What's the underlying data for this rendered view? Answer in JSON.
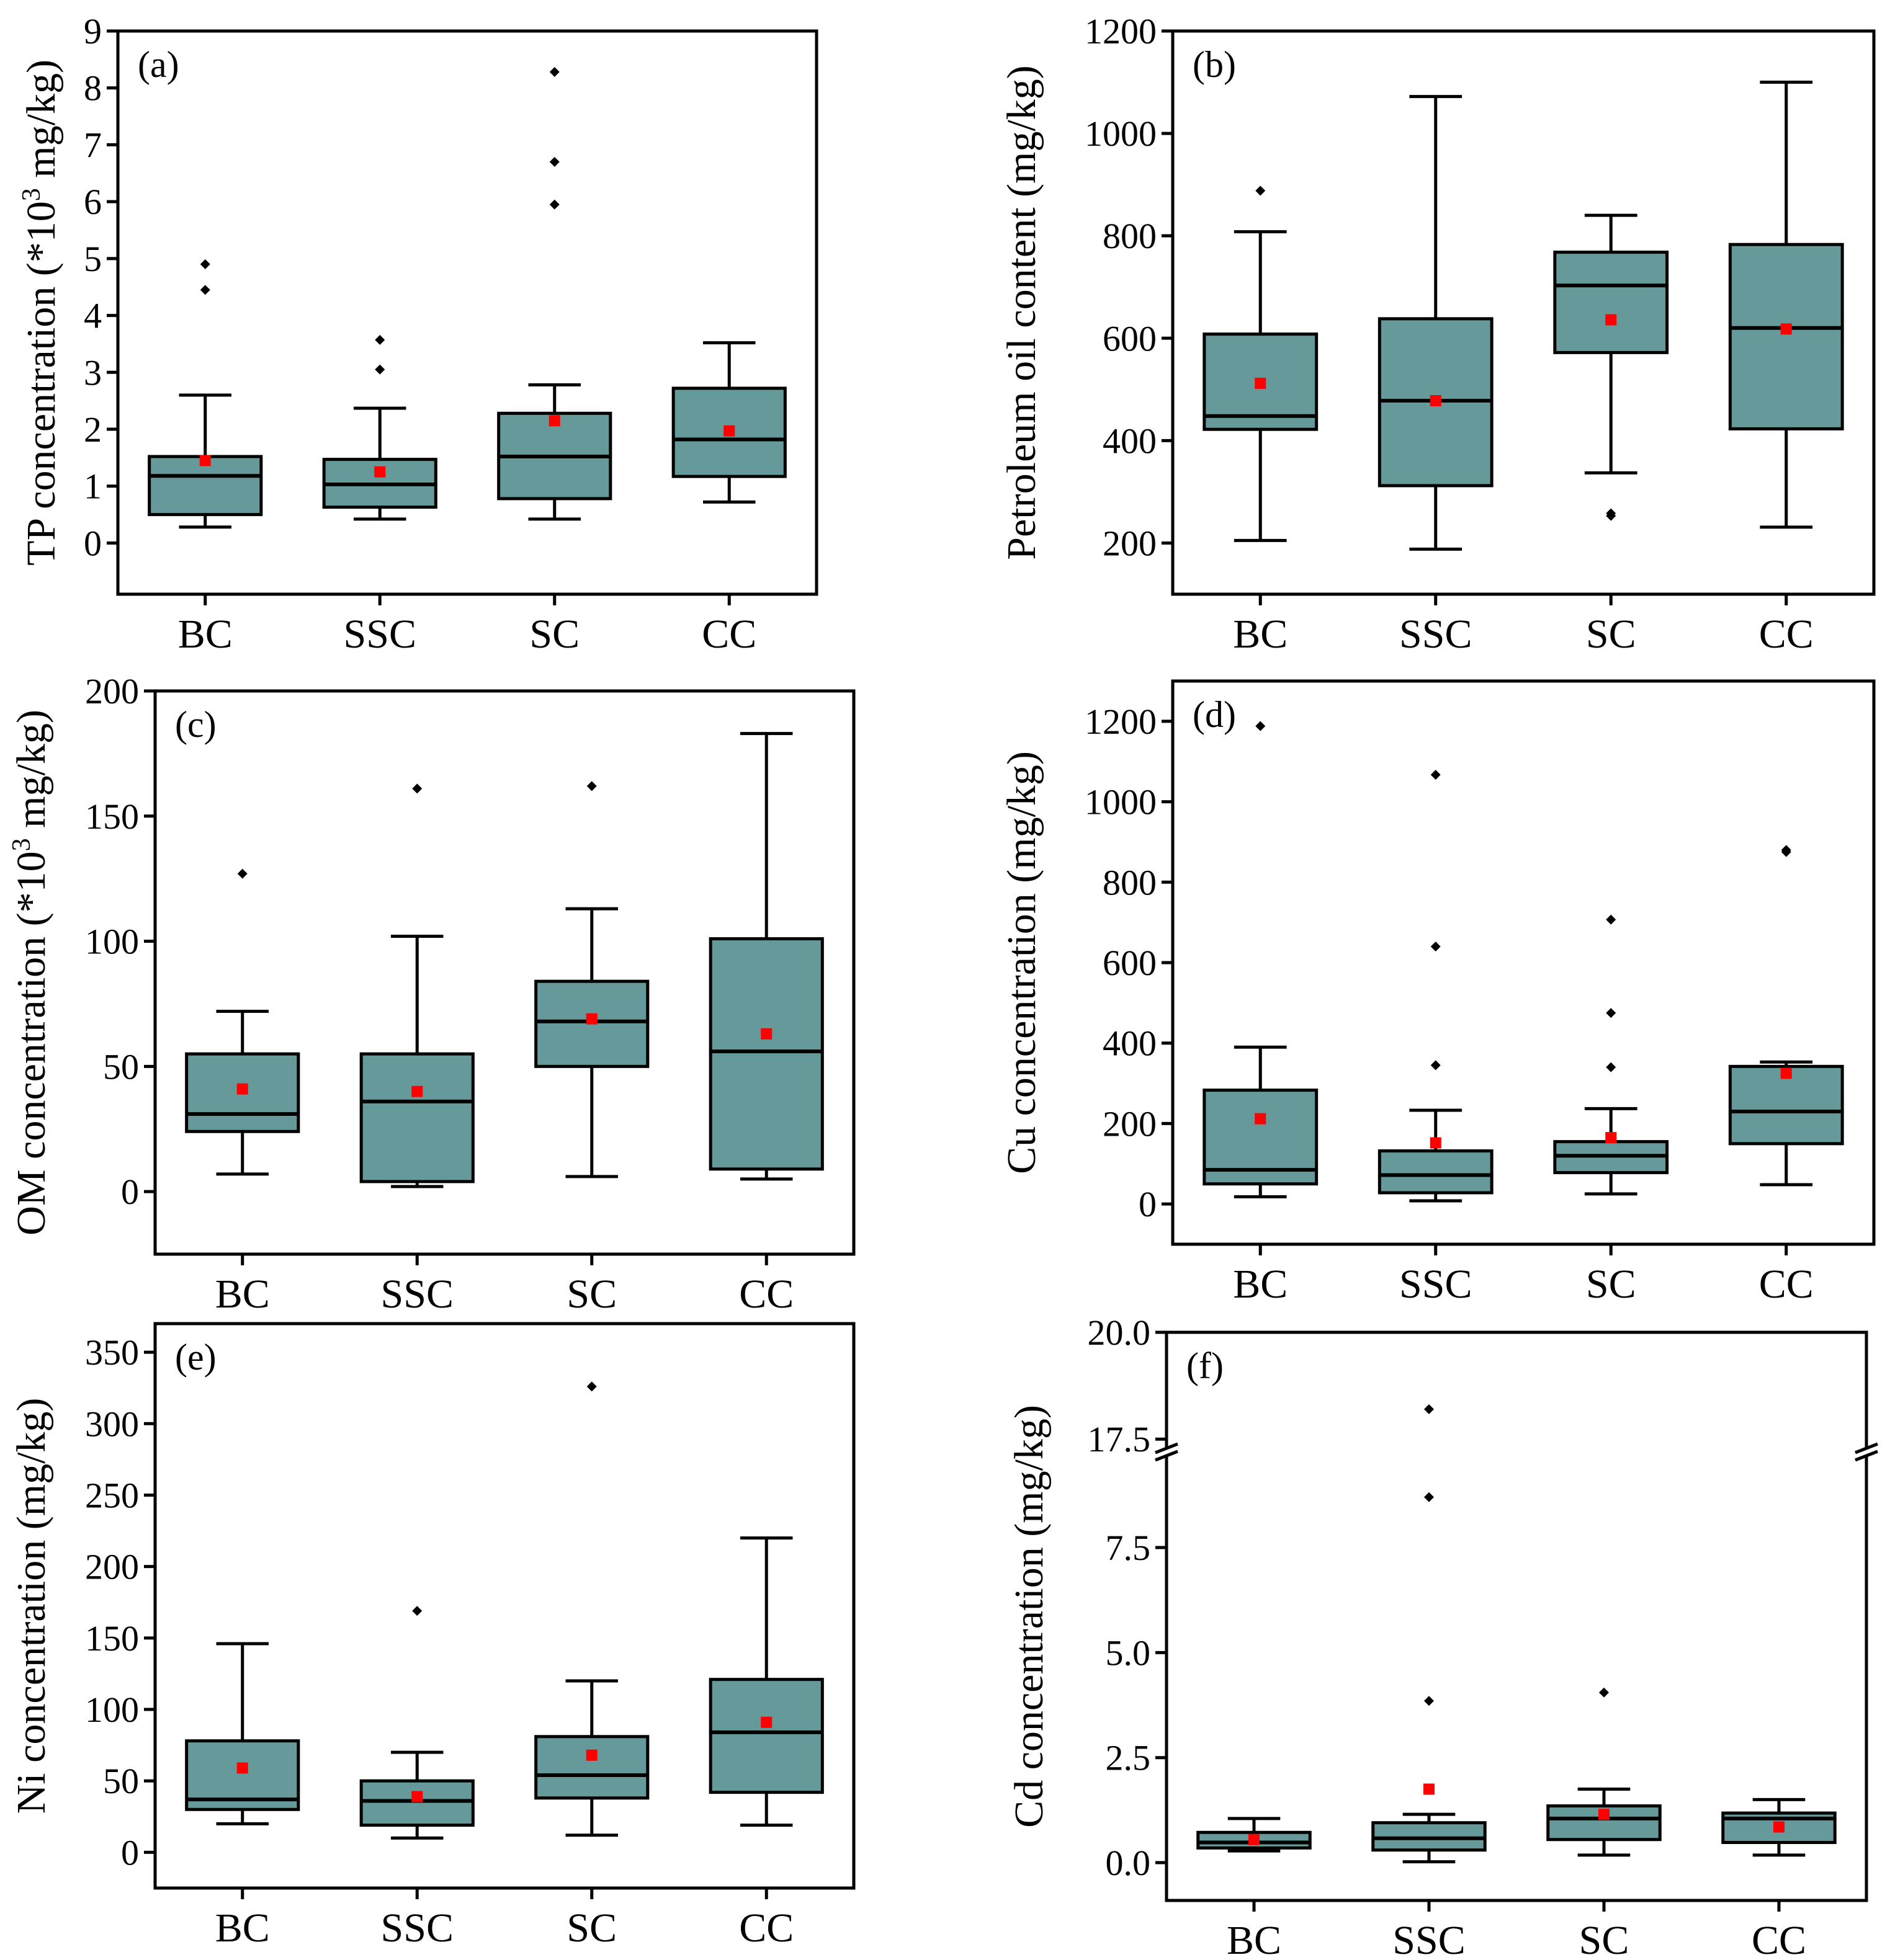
{
  "figure": {
    "colors": {
      "box_fill": "#66999a",
      "mean_marker": "#ff0000",
      "ink": "#000000",
      "background": "#ffffff"
    }
  },
  "chart_data": [
    {
      "type": "box",
      "id": "a",
      "panel_label": "(a)",
      "ylabel": "TP concentration (*10",
      "ylabel_superscript": "3",
      "ylabel_suffix": " mg/kg)",
      "ylim": [
        -0.9,
        9
      ],
      "yticks": [
        0,
        1,
        2,
        3,
        4,
        5,
        6,
        7,
        8,
        9
      ],
      "ytick_labels": [
        "0",
        "1",
        "2",
        "3",
        "4",
        "5",
        "6",
        "7",
        "8",
        "9"
      ],
      "categories": [
        "BC",
        "SSC",
        "SC",
        "CC"
      ],
      "boxes": [
        {
          "whisker_low": 0.28,
          "q1": 0.5,
          "median": 1.18,
          "q3": 1.52,
          "whisker_high": 2.6,
          "mean": 1.45,
          "outliers": [
            4.45,
            4.9
          ]
        },
        {
          "whisker_low": 0.42,
          "q1": 0.63,
          "median": 1.03,
          "q3": 1.47,
          "whisker_high": 2.37,
          "mean": 1.25,
          "outliers": [
            3.05,
            3.57
          ]
        },
        {
          "whisker_low": 0.42,
          "q1": 0.78,
          "median": 1.52,
          "q3": 2.28,
          "whisker_high": 2.78,
          "mean": 2.15,
          "outliers": [
            5.95,
            6.7,
            8.28
          ]
        },
        {
          "whisker_low": 0.72,
          "q1": 1.17,
          "median": 1.82,
          "q3": 2.72,
          "whisker_high": 3.52,
          "mean": 1.97,
          "outliers": []
        }
      ]
    },
    {
      "type": "box",
      "id": "b",
      "panel_label": "(b)",
      "ylabel": "Petroleum oil content (mg/kg)",
      "ylim": [
        100,
        1200
      ],
      "yticks": [
        200,
        400,
        600,
        800,
        1000,
        1200
      ],
      "ytick_labels": [
        "200",
        "400",
        "600",
        "800",
        "1000",
        "1200"
      ],
      "categories": [
        "BC",
        "SSC",
        "SC",
        "CC"
      ],
      "boxes": [
        {
          "whisker_low": 205,
          "q1": 422,
          "median": 448,
          "q3": 608,
          "whisker_high": 808,
          "mean": 512,
          "outliers": [
            888
          ]
        },
        {
          "whisker_low": 188,
          "q1": 312,
          "median": 478,
          "q3": 638,
          "whisker_high": 1072,
          "mean": 478,
          "outliers": []
        },
        {
          "whisker_low": 337,
          "q1": 572,
          "median": 703,
          "q3": 768,
          "whisker_high": 840,
          "mean": 636,
          "outliers": [
            253,
            258
          ]
        },
        {
          "whisker_low": 231,
          "q1": 423,
          "median": 620,
          "q3": 783,
          "whisker_high": 1100,
          "mean": 618,
          "outliers": []
        }
      ]
    },
    {
      "type": "box",
      "id": "c",
      "panel_label": "(c)",
      "ylabel": "OM concentration (*10",
      "ylabel_superscript": "3",
      "ylabel_suffix": " mg/kg)",
      "ylim": [
        -25,
        200
      ],
      "yticks": [
        0,
        50,
        100,
        150,
        200
      ],
      "ytick_labels": [
        "0",
        "50",
        "100",
        "150",
        "200"
      ],
      "categories": [
        "BC",
        "SSC",
        "SC",
        "CC"
      ],
      "boxes": [
        {
          "whisker_low": 7,
          "q1": 24,
          "median": 31,
          "q3": 55,
          "whisker_high": 72,
          "mean": 41,
          "outliers": [
            127
          ]
        },
        {
          "whisker_low": 2,
          "q1": 4,
          "median": 36,
          "q3": 55,
          "whisker_high": 102,
          "mean": 40,
          "outliers": [
            161
          ]
        },
        {
          "whisker_low": 6,
          "q1": 50,
          "median": 68,
          "q3": 84,
          "whisker_high": 113,
          "mean": 69,
          "outliers": [
            162
          ]
        },
        {
          "whisker_low": 5,
          "q1": 9,
          "median": 56,
          "q3": 101,
          "whisker_high": 183,
          "mean": 63,
          "outliers": []
        }
      ]
    },
    {
      "type": "box",
      "id": "d",
      "panel_label": "(d)",
      "ylabel": "Cu concentration (mg/kg)",
      "ylim": [
        -100,
        1300
      ],
      "yticks": [
        0,
        200,
        400,
        600,
        800,
        1000,
        1200
      ],
      "ytick_labels": [
        "0",
        "200",
        "400",
        "600",
        "800",
        "1000",
        "1200"
      ],
      "categories": [
        "BC",
        "SSC",
        "SC",
        "CC"
      ],
      "boxes": [
        {
          "whisker_low": 18,
          "q1": 50,
          "median": 85,
          "q3": 283,
          "whisker_high": 390,
          "mean": 212,
          "outliers": [
            1188
          ]
        },
        {
          "whisker_low": 8,
          "q1": 28,
          "median": 72,
          "q3": 132,
          "whisker_high": 233,
          "mean": 152,
          "outliers": [
            345,
            640,
            1067
          ]
        },
        {
          "whisker_low": 25,
          "q1": 78,
          "median": 120,
          "q3": 155,
          "whisker_high": 237,
          "mean": 165,
          "outliers": [
            340,
            475,
            707
          ]
        },
        {
          "whisker_low": 48,
          "q1": 150,
          "median": 230,
          "q3": 342,
          "whisker_high": 353,
          "mean": 325,
          "outliers": [
            875,
            880
          ]
        }
      ]
    },
    {
      "type": "box",
      "id": "e",
      "panel_label": "(e)",
      "ylabel": "Ni concentration (mg/kg)",
      "ylim": [
        -25,
        370
      ],
      "yticks": [
        0,
        50,
        100,
        150,
        200,
        250,
        300,
        350
      ],
      "ytick_labels": [
        "0",
        "50",
        "100",
        "150",
        "200",
        "250",
        "300",
        "350"
      ],
      "categories": [
        "BC",
        "SSC",
        "SC",
        "CC"
      ],
      "boxes": [
        {
          "whisker_low": 20,
          "q1": 30,
          "median": 37,
          "q3": 78,
          "whisker_high": 146,
          "mean": 59,
          "outliers": []
        },
        {
          "whisker_low": 10,
          "q1": 19,
          "median": 36,
          "q3": 50,
          "whisker_high": 70,
          "mean": 39,
          "outliers": [
            169
          ]
        },
        {
          "whisker_low": 12,
          "q1": 38,
          "median": 54,
          "q3": 81,
          "whisker_high": 120,
          "mean": 68,
          "outliers": [
            326
          ]
        },
        {
          "whisker_low": 19,
          "q1": 42,
          "median": 84,
          "q3": 121,
          "whisker_high": 220,
          "mean": 91,
          "outliers": []
        }
      ]
    },
    {
      "type": "box",
      "id": "f",
      "panel_label": "(f)",
      "ylabel": "Cd concentration (mg/kg)",
      "broken_axis": true,
      "lower_ylim": [
        -0.9,
        9.7
      ],
      "upper_ylim": [
        17.3,
        20.0
      ],
      "yticks_lower": [
        0.0,
        2.5,
        5.0,
        7.5
      ],
      "ytick_labels_lower": [
        "0.0",
        "2.5",
        "5.0",
        "7.5"
      ],
      "yticks_upper": [
        17.5,
        20.0
      ],
      "ytick_labels_upper": [
        "17.5",
        "20.0"
      ],
      "categories": [
        "BC",
        "SSC",
        "SC",
        "CC"
      ],
      "boxes": [
        {
          "whisker_low": 0.28,
          "q1": 0.35,
          "median": 0.48,
          "q3": 0.72,
          "whisker_high": 1.05,
          "mean": 0.55,
          "outliers": []
        },
        {
          "whisker_low": 0.02,
          "q1": 0.3,
          "median": 0.58,
          "q3": 0.95,
          "whisker_high": 1.15,
          "mean": 1.75,
          "outliers": [
            3.85,
            8.7,
            18.2
          ]
        },
        {
          "whisker_low": 0.18,
          "q1": 0.55,
          "median": 1.05,
          "q3": 1.35,
          "whisker_high": 1.75,
          "mean": 1.15,
          "outliers": [
            4.05
          ]
        },
        {
          "whisker_low": 0.18,
          "q1": 0.48,
          "median": 1.05,
          "q3": 1.18,
          "whisker_high": 1.5,
          "mean": 0.85,
          "outliers": []
        }
      ]
    }
  ]
}
